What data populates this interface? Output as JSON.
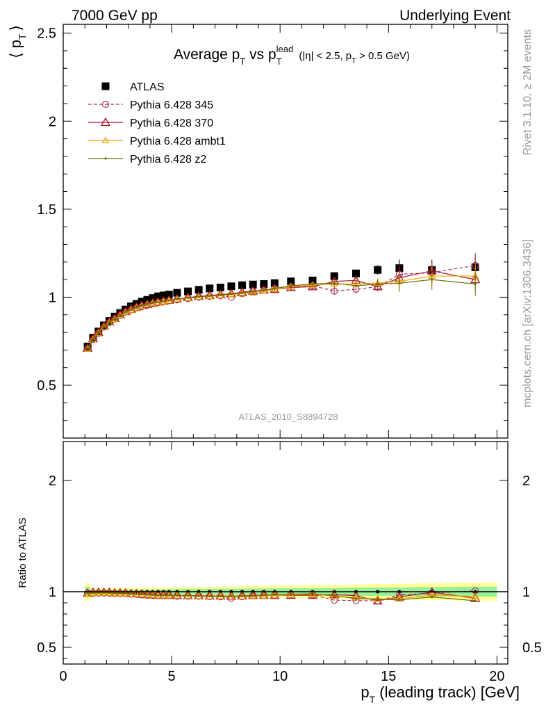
{
  "header": {
    "left": "7000 GeV pp",
    "right": "Underlying Event"
  },
  "side": {
    "rivet": "Rivet 3.1.10, ≥ 2M events",
    "mcplots": "mcplots.cern.ch [arXiv:1306.3436]"
  },
  "chart_data": {
    "type": "scatter",
    "title_parts": {
      "a": "Average p",
      "a_sub": "T",
      "b": " vs p",
      "b_sub": "T",
      "b_sup": "lead",
      "c": " (|η| < 2.5, p",
      "c_sub": "T",
      "d": " > 0.5 GeV)"
    },
    "analysis_label": "ATLAS_2010_S8894728",
    "ylabel_main": "⟨ pₜ ⟩",
    "ylabel_main_parts": {
      "open": "⟨ p",
      "sub": "T",
      "close": "⟩"
    },
    "ylabel_ratio": "Ratio to ATLAS",
    "xlabel_parts": {
      "a": "p",
      "sub": "T",
      "b": " (leading track) [GeV]"
    },
    "xlim": [
      0,
      20.5
    ],
    "ylim_main": [
      0.2,
      2.55
    ],
    "ylim_ratio": [
      0.35,
      2.35
    ],
    "x_ticks": [
      0,
      5,
      10,
      15,
      20
    ],
    "x_tick_labels": [
      "0",
      "5",
      "10",
      "15",
      "20"
    ],
    "y_ticks_main": [
      0.5,
      1,
      1.5,
      2,
      2.5
    ],
    "y_tick_labels_main": [
      "0.5",
      "1",
      "1.5",
      "2",
      "2.5"
    ],
    "y_ticks_ratio": [
      0.5,
      1,
      2
    ],
    "y_tick_labels_ratio": [
      "0.5",
      "1",
      "2"
    ],
    "legend_placement": "top-left",
    "x": [
      1.125,
      1.375,
      1.625,
      1.875,
      2.125,
      2.375,
      2.625,
      2.875,
      3.125,
      3.375,
      3.625,
      3.875,
      4.125,
      4.375,
      4.625,
      4.875,
      5.25,
      5.75,
      6.25,
      6.75,
      7.25,
      7.75,
      8.25,
      8.75,
      9.25,
      9.75,
      10.5,
      11.5,
      12.5,
      13.5,
      14.5,
      15.5,
      17.0,
      19.0
    ],
    "series": [
      {
        "name": "ATLAS",
        "color": "#000000",
        "marker": "square",
        "values": [
          0.72,
          0.77,
          0.805,
          0.84,
          0.865,
          0.89,
          0.91,
          0.93,
          0.948,
          0.962,
          0.975,
          0.985,
          0.995,
          1.005,
          1.01,
          1.015,
          1.025,
          1.033,
          1.042,
          1.05,
          1.055,
          1.062,
          1.068,
          1.072,
          1.075,
          1.08,
          1.09,
          1.095,
          1.12,
          1.135,
          1.155,
          1.165,
          1.155,
          1.17
        ]
      },
      {
        "name": "Pythia 6.428 345",
        "color": "#b03060",
        "marker": "circle",
        "dashed": true,
        "values": [
          0.71,
          0.76,
          0.795,
          0.83,
          0.855,
          0.876,
          0.896,
          0.915,
          0.928,
          0.94,
          0.948,
          0.955,
          0.963,
          0.97,
          0.975,
          0.98,
          0.985,
          0.993,
          1.0,
          1.005,
          1.008,
          1.0,
          1.02,
          1.035,
          1.04,
          1.05,
          1.06,
          1.065,
          1.035,
          1.045,
          1.06,
          1.13,
          1.14,
          1.18
        ]
      },
      {
        "name": "Pythia 6.428 370",
        "color": "#a01828",
        "marker": "triangle",
        "values": [
          0.71,
          0.765,
          0.8,
          0.835,
          0.86,
          0.88,
          0.9,
          0.918,
          0.932,
          0.944,
          0.953,
          0.96,
          0.967,
          0.973,
          0.978,
          0.983,
          0.99,
          0.998,
          1.005,
          1.01,
          1.015,
          1.02,
          1.028,
          1.035,
          1.04,
          1.045,
          1.055,
          1.06,
          1.09,
          1.095,
          1.06,
          1.11,
          1.15,
          1.1
        ]
      },
      {
        "name": "Pythia 6.428 ambt1",
        "color": "#f0a000",
        "marker": "triangle-small",
        "values": [
          0.705,
          0.76,
          0.795,
          0.83,
          0.855,
          0.875,
          0.895,
          0.913,
          0.927,
          0.94,
          0.95,
          0.958,
          0.965,
          0.97,
          0.975,
          0.98,
          0.988,
          0.995,
          1.0,
          1.005,
          1.01,
          1.015,
          1.02,
          1.025,
          1.035,
          1.045,
          1.06,
          1.07,
          1.075,
          1.075,
          1.08,
          1.09,
          1.12,
          1.12
        ]
      },
      {
        "name": "Pythia 6.428 z2",
        "color": "#6b6b00",
        "marker": "dot",
        "values": [
          0.71,
          0.762,
          0.797,
          0.832,
          0.857,
          0.877,
          0.897,
          0.915,
          0.929,
          0.941,
          0.951,
          0.959,
          0.966,
          0.971,
          0.976,
          0.981,
          0.99,
          0.997,
          1.002,
          1.007,
          1.012,
          1.018,
          1.025,
          1.032,
          1.04,
          1.05,
          1.065,
          1.075,
          1.08,
          1.065,
          1.075,
          1.08,
          1.1,
          1.075
        ]
      }
    ]
  }
}
